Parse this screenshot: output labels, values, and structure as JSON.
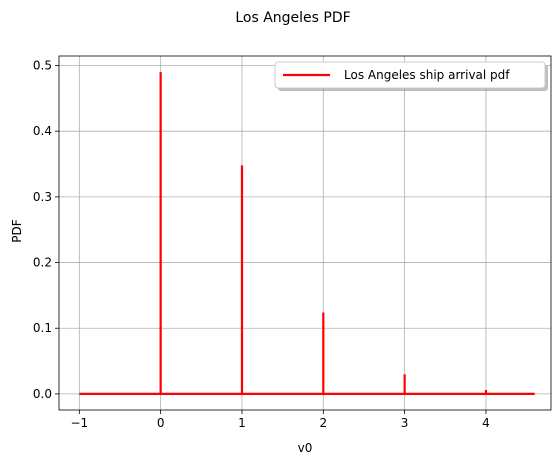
{
  "chart_data": {
    "type": "line",
    "title": "Los Angeles PDF",
    "xlabel": "v0",
    "ylabel": "PDF",
    "xlim": [
      -1.25,
      4.8
    ],
    "ylim": [
      -0.0245,
      0.5145
    ],
    "xticks": [
      -1,
      0,
      1,
      2,
      3,
      4
    ],
    "xtick_labels": [
      "−1",
      "0",
      "1",
      "2",
      "3",
      "4"
    ],
    "yticks": [
      0.0,
      0.1,
      0.2,
      0.3,
      0.4,
      0.5
    ],
    "ytick_labels": [
      "0.0",
      "0.1",
      "0.2",
      "0.3",
      "0.4",
      "0.5"
    ],
    "grid": true,
    "legend_position": "top-right",
    "series": [
      {
        "name": "Los Angeles ship arrival pdf",
        "color": "#ff0000",
        "x": [
          -1,
          0,
          0,
          0,
          1,
          1,
          1,
          2,
          2,
          2,
          3,
          3,
          3,
          4,
          4,
          4,
          4.6
        ],
        "y": [
          0,
          0,
          0.49,
          0,
          0,
          0.348,
          0,
          0,
          0.124,
          0,
          0,
          0.03,
          0,
          0,
          0.006,
          0,
          0
        ]
      }
    ]
  }
}
